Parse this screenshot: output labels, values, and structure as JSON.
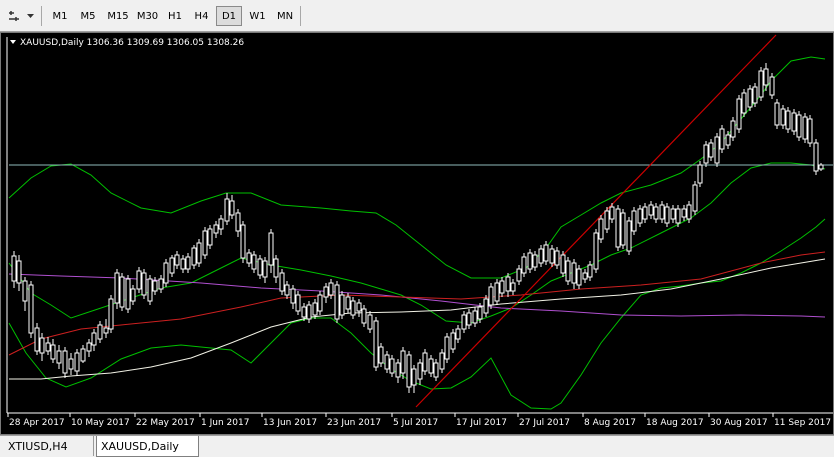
{
  "toolbar": {
    "timeframes": [
      {
        "label": "M1",
        "active": false
      },
      {
        "label": "M5",
        "active": false
      },
      {
        "label": "M15",
        "active": false
      },
      {
        "label": "M30",
        "active": false
      },
      {
        "label": "H1",
        "active": false
      },
      {
        "label": "H4",
        "active": false
      },
      {
        "label": "D1",
        "active": true
      },
      {
        "label": "W1",
        "active": false
      },
      {
        "label": "MN",
        "active": false
      }
    ],
    "tool_icon": "line-tools-icon",
    "dropdown_icon": "chevron-down-icon"
  },
  "chart": {
    "header": "XAUUSD,Daily  1306.36 1309.69 1306.05 1308.26",
    "header_icon": "triangle-down-icon",
    "date_labels": [
      "28 Apr 2017",
      "10 May 2017",
      "22 May 2017",
      "1 Jun 2017",
      "13 Jun 2017",
      "23 Jun 2017",
      "5 Jul 2017",
      "17 Jul 2017",
      "27 Jul 2017",
      "8 Aug 2017",
      "18 Aug 2017",
      "30 Aug 2017",
      "11 Sep 2017"
    ],
    "colors": {
      "background": "#000000",
      "bull_candle": "#00ff00",
      "bear_candle": "#ffffff",
      "bollinger": "#00c000",
      "trendline": "#cc0000",
      "ma_red": "#cc2020",
      "ma_white": "#f2f2e6",
      "ma_purple": "#b050d0",
      "hline": "#8fbcbc"
    }
  },
  "tabs": [
    {
      "label": "XTIUSD,H4",
      "active": false
    },
    {
      "label": "XAUUSD,Daily",
      "active": true
    }
  ]
}
